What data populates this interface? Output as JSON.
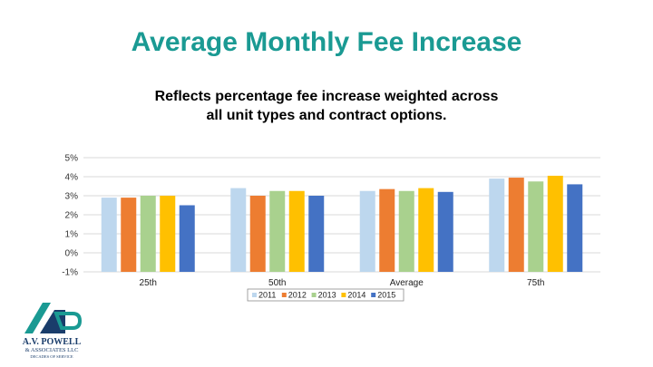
{
  "header": {
    "title": "Average Monthly Fee Increase",
    "subtitle_line1": "Reflects percentage fee increase weighted across",
    "subtitle_line2": "all unit types and contract options."
  },
  "logo": {
    "name": "A.V. POWELL",
    "line2": "& ASSOCIATES LLC",
    "tagline": "DECADES OF SERVICE"
  },
  "colors": {
    "title": "#1a9a93",
    "grid": "#d9d9d9",
    "series": [
      "#bdd7ee",
      "#ed7d31",
      "#a9d18e",
      "#ffc000",
      "#4472c4"
    ]
  },
  "chart_data": {
    "type": "bar",
    "categories": [
      "25th",
      "50th",
      "Average",
      "75th"
    ],
    "series": [
      {
        "name": "2011",
        "values": [
          2.9,
          3.4,
          3.25,
          3.9
        ]
      },
      {
        "name": "2012",
        "values": [
          2.9,
          3.0,
          3.35,
          3.95
        ]
      },
      {
        "name": "2013",
        "values": [
          3.0,
          3.25,
          3.25,
          3.75
        ]
      },
      {
        "name": "2014",
        "values": [
          3.0,
          3.25,
          3.4,
          4.05
        ]
      },
      {
        "name": "2015",
        "values": [
          2.5,
          3.0,
          3.2,
          3.6
        ]
      }
    ],
    "ylim": [
      -1,
      5
    ],
    "ytick_labels": [
      "-1%",
      "0%",
      "1%",
      "2%",
      "3%",
      "4%",
      "5%"
    ],
    "grid": true,
    "legend_position": "bottom"
  }
}
